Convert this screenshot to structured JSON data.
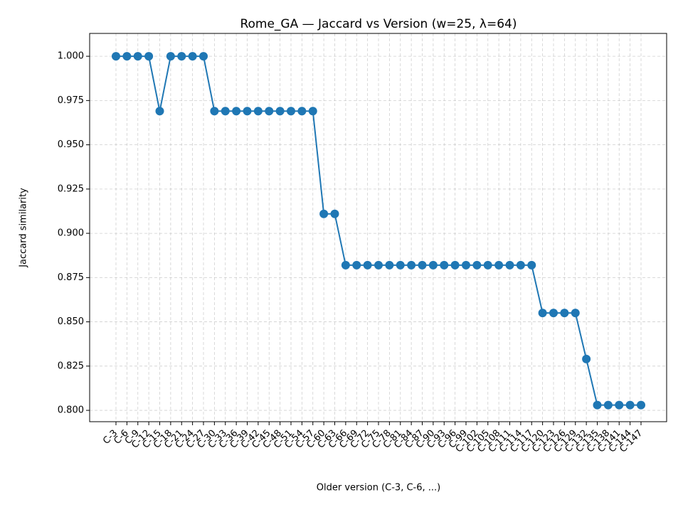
{
  "chart_data": {
    "type": "line",
    "title": "Rome_GA — Jaccard vs Version (w=25, λ=64)",
    "xlabel": "Older version (C-3, C-6, ...)",
    "ylabel": "Jaccard similarity",
    "categories": [
      "C-3",
      "C-6",
      "C-9",
      "C-12",
      "C-15",
      "C-18",
      "C-21",
      "C-24",
      "C-27",
      "C-30",
      "C-33",
      "C-36",
      "C-39",
      "C-42",
      "C-45",
      "C-48",
      "C-51",
      "C-54",
      "C-57",
      "C-60",
      "C-63",
      "C-66",
      "C-69",
      "C-72",
      "C-75",
      "C-78",
      "C-81",
      "C-84",
      "C-87",
      "C-90",
      "C-93",
      "C-96",
      "C-99",
      "C-102",
      "C-105",
      "C-108",
      "C-111",
      "C-114",
      "C-117",
      "C-120",
      "C-123",
      "C-126",
      "C-129",
      "C-132",
      "C-135",
      "C-138",
      "C-141",
      "C-144",
      "C-147"
    ],
    "series": [
      {
        "name": "Jaccard similarity",
        "color": "#1f77b4",
        "values": [
          1.0,
          1.0,
          1.0,
          1.0,
          0.969,
          1.0,
          1.0,
          1.0,
          1.0,
          0.969,
          0.969,
          0.969,
          0.969,
          0.969,
          0.969,
          0.969,
          0.969,
          0.969,
          0.969,
          0.911,
          0.911,
          0.882,
          0.882,
          0.882,
          0.882,
          0.882,
          0.882,
          0.882,
          0.882,
          0.882,
          0.882,
          0.882,
          0.882,
          0.882,
          0.882,
          0.882,
          0.882,
          0.882,
          0.882,
          0.855,
          0.855,
          0.855,
          0.855,
          0.829,
          0.803,
          0.803,
          0.803,
          0.803,
          0.803
        ]
      }
    ],
    "ylim": [
      0.7936,
      1.0129
    ],
    "yticks": [
      {
        "value": 0.8,
        "label": "0.800"
      },
      {
        "value": 0.825,
        "label": "0.825"
      },
      {
        "value": 0.85,
        "label": "0.850"
      },
      {
        "value": 0.875,
        "label": "0.875"
      },
      {
        "value": 0.9,
        "label": "0.900"
      },
      {
        "value": 0.925,
        "label": "0.925"
      },
      {
        "value": 0.95,
        "label": "0.950"
      },
      {
        "value": 0.975,
        "label": "0.975"
      },
      {
        "value": 1.0,
        "label": "1.000"
      }
    ],
    "grid": true
  }
}
